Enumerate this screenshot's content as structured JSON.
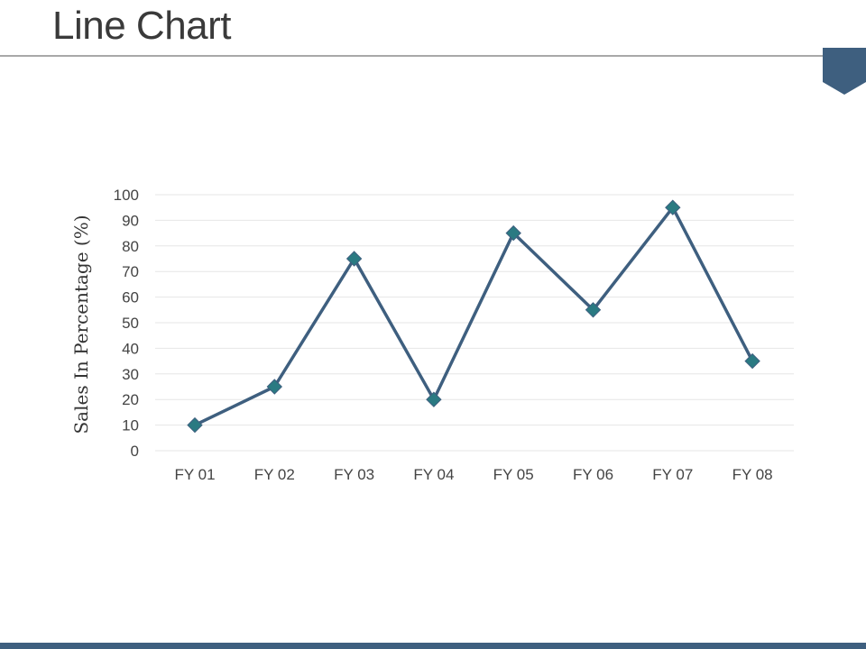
{
  "slide": {
    "title": "Line Chart"
  },
  "colors": {
    "line": "#3e5f7f",
    "marker": "#2a7a82",
    "grid": "#e6e6e6",
    "footer": "#3e5f7f",
    "badge": "#3e5f7f"
  },
  "chart_data": {
    "type": "line",
    "title": "",
    "xlabel": "",
    "ylabel": "Sales In Percentage (%)",
    "categories": [
      "FY 01",
      "FY 02",
      "FY 03",
      "FY 04",
      "FY 05",
      "FY 06",
      "FY 07",
      "FY 08"
    ],
    "series": [
      {
        "values": [
          10,
          25,
          75,
          20,
          85,
          55,
          95,
          35
        ],
        "marker": "diamond"
      }
    ],
    "ylim": [
      0,
      100
    ],
    "yticks": [
      0,
      10,
      20,
      30,
      40,
      50,
      60,
      70,
      80,
      90,
      100
    ],
    "grid": true,
    "legend": "none"
  }
}
